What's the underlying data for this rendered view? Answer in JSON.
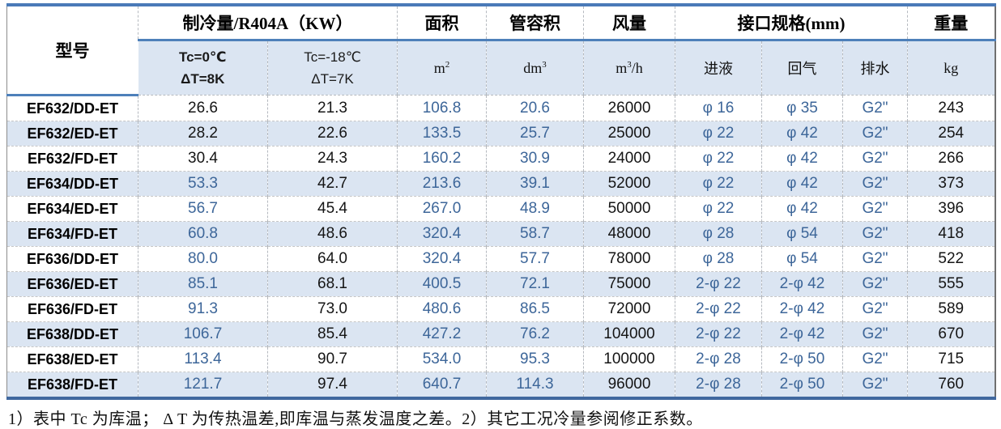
{
  "colors": {
    "accent_border": "#4a7ab8",
    "stripe_bg": "#dbe5f2",
    "blue_text": "#3d6699",
    "black_text": "#151515"
  },
  "table": {
    "header": {
      "model_label": "型号",
      "capacity_group_label": "制冷量/R404A（KW）",
      "capacity_sub1_line1": "Tc=0℃",
      "capacity_sub1_line2": "ΔT=8K",
      "capacity_sub2_line1": "Tc=-18℃",
      "capacity_sub2_line2": "ΔT=7K",
      "area_label": "面积",
      "area_unit_base": "m",
      "area_unit_sup": "2",
      "volume_label": "管容积",
      "volume_unit_base": "dm",
      "volume_unit_sup": "3",
      "airflow_label": "风量",
      "airflow_unit_base": "m",
      "airflow_unit_sup": "3",
      "airflow_unit_suffix": "/h",
      "connection_group_label": "接口规格(mm)",
      "liquid_label": "进液",
      "gas_label": "回气",
      "drain_label": "排水",
      "weight_label": "重量",
      "weight_unit": "kg"
    },
    "rows": [
      {
        "model": "EF632/DD-ET",
        "cap0": "26.6",
        "cap0_blue": false,
        "cap18": "21.3",
        "area": "106.8",
        "volume": "20.6",
        "airflow": "26000",
        "liquid": "φ 16",
        "gas": "φ 35",
        "drain": "G2\"",
        "weight": "243"
      },
      {
        "model": "EF632/ED-ET",
        "cap0": "28.2",
        "cap0_blue": false,
        "cap18": "22.6",
        "area": "133.5",
        "volume": "25.7",
        "airflow": "25000",
        "liquid": "φ 22",
        "gas": "φ 42",
        "drain": "G2\"",
        "weight": "254"
      },
      {
        "model": "EF632/FD-ET",
        "cap0": "30.4",
        "cap0_blue": false,
        "cap18": "24.3",
        "area": "160.2",
        "volume": "30.9",
        "airflow": "24000",
        "liquid": "φ 22",
        "gas": "φ 42",
        "drain": "G2\"",
        "weight": "266"
      },
      {
        "model": "EF634/DD-ET",
        "cap0": "53.3",
        "cap0_blue": true,
        "cap18": "42.7",
        "area": "213.6",
        "volume": "39.1",
        "airflow": "52000",
        "liquid": "φ 22",
        "gas": "φ 42",
        "drain": "G2\"",
        "weight": "373"
      },
      {
        "model": "EF634/ED-ET",
        "cap0": "56.7",
        "cap0_blue": true,
        "cap18": "45.4",
        "area": "267.0",
        "volume": "48.9",
        "airflow": "50000",
        "liquid": "φ 22",
        "gas": "φ 42",
        "drain": "G2\"",
        "weight": "396"
      },
      {
        "model": "EF634/FD-ET",
        "cap0": "60.8",
        "cap0_blue": true,
        "cap18": "48.6",
        "area": "320.4",
        "volume": "58.7",
        "airflow": "48000",
        "liquid": "φ 28",
        "gas": "φ 54",
        "drain": "G2\"",
        "weight": "418"
      },
      {
        "model": "EF636/DD-ET",
        "cap0": "80.0",
        "cap0_blue": true,
        "cap18": "64.0",
        "area": "320.4",
        "volume": "57.7",
        "airflow": "78000",
        "liquid": "φ 28",
        "gas": "φ 54",
        "drain": "G2\"",
        "weight": "522"
      },
      {
        "model": "EF636/ED-ET",
        "cap0": "85.1",
        "cap0_blue": true,
        "cap18": "68.1",
        "area": "400.5",
        "volume": "72.1",
        "airflow": "75000",
        "liquid": "2-φ 22",
        "gas": "2-φ 42",
        "drain": "G2\"",
        "weight": "555"
      },
      {
        "model": "EF636/FD-ET",
        "cap0": "91.3",
        "cap0_blue": true,
        "cap18": "73.0",
        "area": "480.6",
        "volume": "86.5",
        "airflow": "72000",
        "liquid": "2-φ 22",
        "gas": "2-φ 42",
        "drain": "G2\"",
        "weight": "589"
      },
      {
        "model": "EF638/DD-ET",
        "cap0": "106.7",
        "cap0_blue": true,
        "cap18": "85.4",
        "area": "427.2",
        "volume": "76.2",
        "airflow": "104000",
        "liquid": "2-φ 22",
        "gas": "2-φ 42",
        "drain": "G2\"",
        "weight": "670"
      },
      {
        "model": "EF638/ED-ET",
        "cap0": "113.4",
        "cap0_blue": true,
        "cap18": "90.7",
        "area": "534.0",
        "volume": "95.3",
        "airflow": "100000",
        "liquid": "2-φ 28",
        "gas": "2-φ 50",
        "drain": "G2\"",
        "weight": "715"
      },
      {
        "model": "EF638/FD-ET",
        "cap0": "121.7",
        "cap0_blue": true,
        "cap18": "97.4",
        "area": "640.7",
        "volume": "114.3",
        "airflow": "96000",
        "liquid": "2-φ 28",
        "gas": "2-φ 50",
        "drain": "G2\"",
        "weight": "760"
      }
    ],
    "notes": "1）表中 Tc 为库温； Δ T 为传热温差,即库温与蒸发温度之差。2）其它工况冷量参阅修正系数。"
  }
}
